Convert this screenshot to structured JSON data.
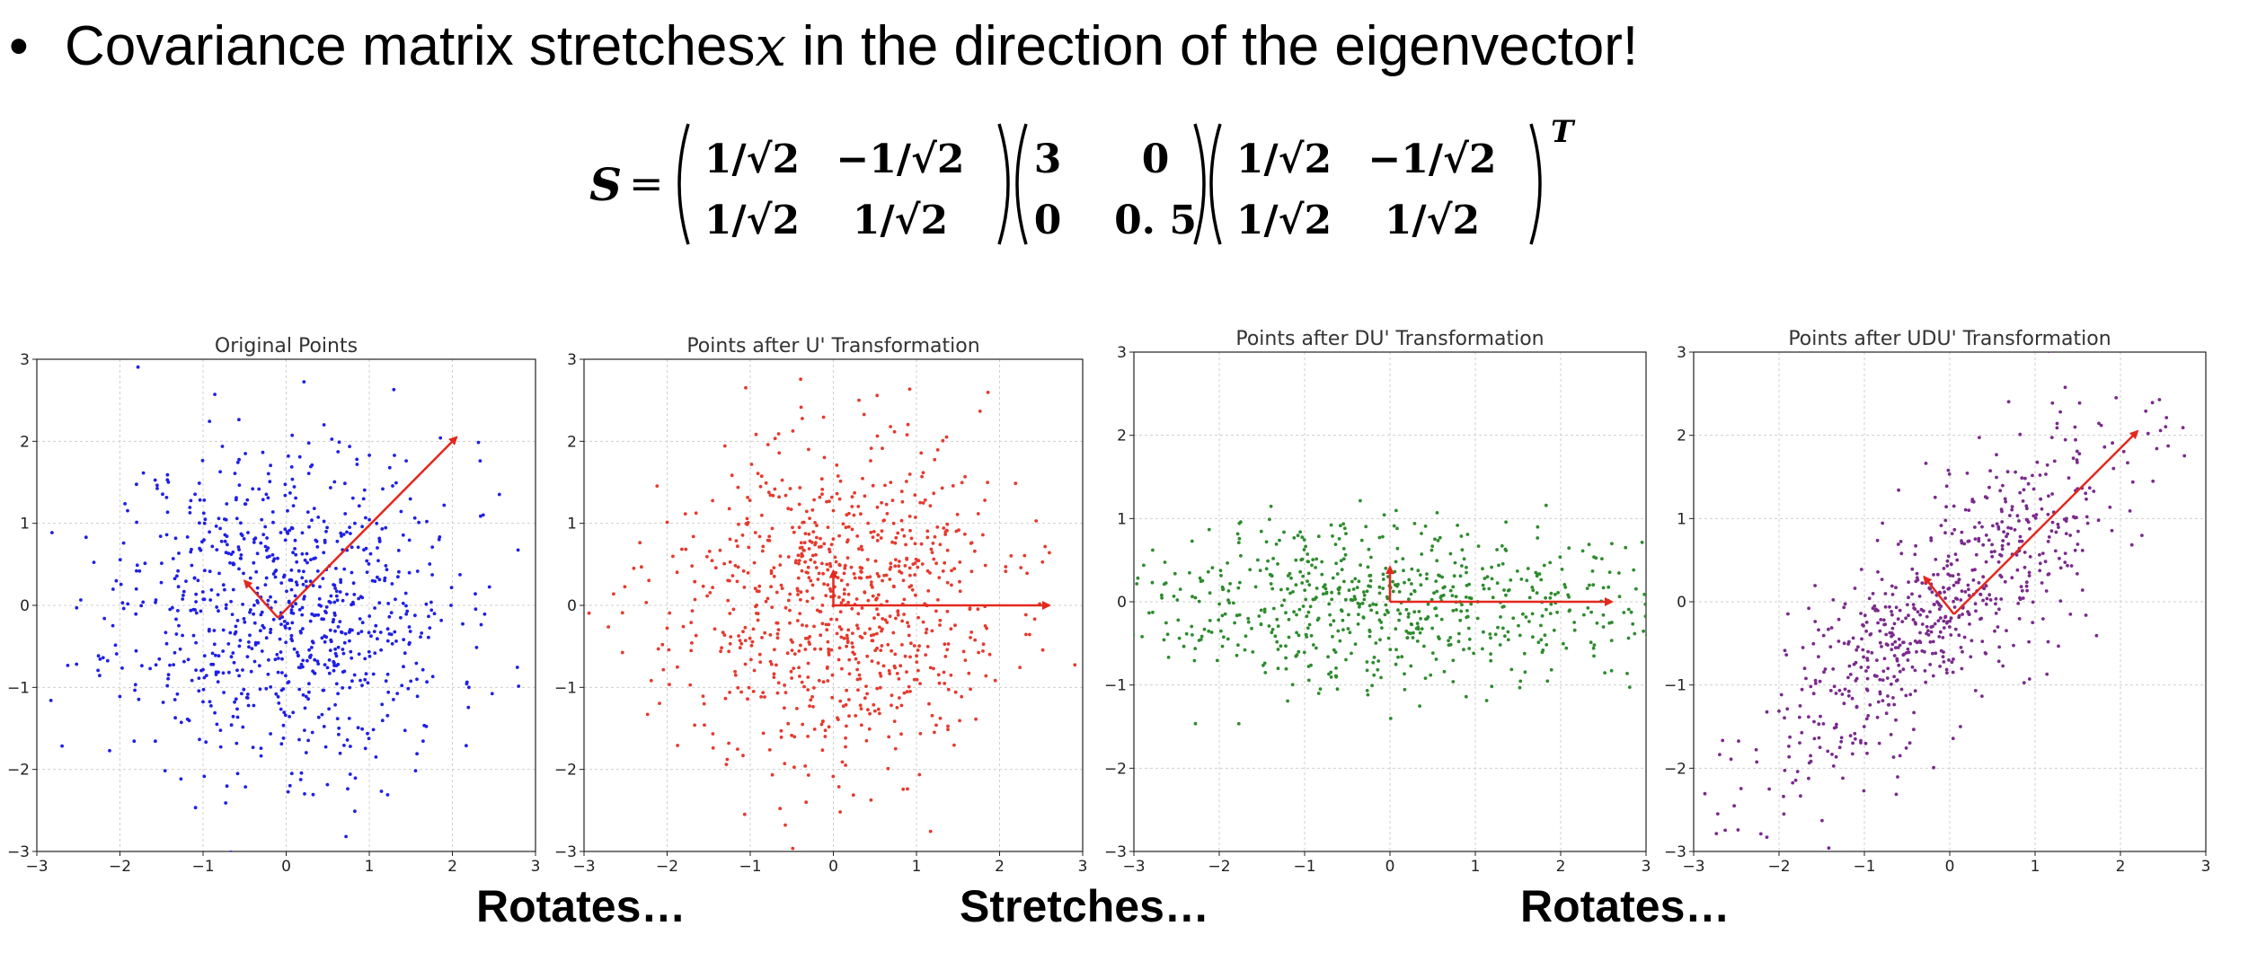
{
  "header": {
    "bullet": "•",
    "text_before": "Covariance matrix stretches ",
    "variable": "x",
    "text_after": " in the direction of the eigenvector!"
  },
  "formula": {
    "lhs": "S",
    "equals": "=",
    "U": [
      [
        "1/√2",
        "−1/√2"
      ],
      [
        "1/√2",
        "1/√2"
      ]
    ],
    "D": [
      [
        "3",
        "0"
      ],
      [
        "0",
        "0. 5"
      ]
    ],
    "U2": [
      [
        "1/√2",
        "−1/√2"
      ],
      [
        "1/√2",
        "1/√2"
      ]
    ],
    "transpose": "T"
  },
  "captions": [
    "Rotates…",
    "Stretches…",
    "Rotates…"
  ],
  "chart_data": [
    {
      "type": "scatter",
      "title": "Original Points",
      "color": "#1f1fe6",
      "xlim": [
        -3,
        3
      ],
      "ylim": [
        -3,
        3
      ],
      "xticks": [
        -3,
        -2,
        -1,
        0,
        1,
        2,
        3
      ],
      "yticks": [
        -3,
        -2,
        -1,
        0,
        1,
        2,
        3
      ],
      "grid": true,
      "distribution": {
        "sx": 1.0,
        "sy": 1.0,
        "rotation_deg": 0,
        "n": 850,
        "seed": 11
      },
      "arrows": [
        {
          "from": [
            -0.1,
            -0.15
          ],
          "to": [
            2.05,
            2.05
          ]
        },
        {
          "from": [
            -0.1,
            -0.15
          ],
          "to": [
            -0.5,
            0.3
          ]
        }
      ],
      "arrow_color": "#e3281e"
    },
    {
      "type": "scatter",
      "title": "Points after U' Transformation",
      "color": "#e53a2e",
      "xlim": [
        -3,
        3
      ],
      "ylim": [
        -3,
        3
      ],
      "xticks": [
        -3,
        -2,
        -1,
        0,
        1,
        2,
        3
      ],
      "yticks": [
        -3,
        -2,
        -1,
        0,
        1,
        2,
        3
      ],
      "grid": true,
      "distribution": {
        "sx": 1.0,
        "sy": 1.0,
        "rotation_deg": 0,
        "n": 850,
        "seed": 23
      },
      "arrows": [
        {
          "from": [
            0,
            0
          ],
          "to": [
            2.6,
            0
          ]
        },
        {
          "from": [
            0,
            0
          ],
          "to": [
            0,
            0.42
          ]
        }
      ],
      "arrow_color": "#e3281e"
    },
    {
      "type": "scatter",
      "title": "Points after DU' Transformation",
      "color": "#2e8b2e",
      "xlim": [
        -3,
        3
      ],
      "ylim": [
        -3,
        3
      ],
      "xticks": [
        -3,
        -2,
        -1,
        0,
        1,
        2,
        3
      ],
      "yticks": [
        -3,
        -2,
        -1,
        0,
        1,
        2,
        3
      ],
      "grid": true,
      "distribution": {
        "sx": 1.6,
        "sy": 0.5,
        "rotation_deg": 0,
        "n": 700,
        "seed": 37
      },
      "arrows": [
        {
          "from": [
            0,
            0
          ],
          "to": [
            2.6,
            0
          ]
        },
        {
          "from": [
            0,
            0
          ],
          "to": [
            0,
            0.42
          ]
        }
      ],
      "arrow_color": "#e3281e"
    },
    {
      "type": "scatter",
      "title": "Points after UDU' Transformation",
      "color": "#7a2a8c",
      "xlim": [
        -3,
        3
      ],
      "ylim": [
        -3,
        3
      ],
      "xticks": [
        -3,
        -2,
        -1,
        0,
        1,
        2,
        3
      ],
      "yticks": [
        -3,
        -2,
        -1,
        0,
        1,
        2,
        3
      ],
      "grid": true,
      "distribution": {
        "sx": 1.6,
        "sy": 0.5,
        "rotation_deg": 45,
        "n": 700,
        "seed": 53
      },
      "arrows": [
        {
          "from": [
            0.05,
            -0.15
          ],
          "to": [
            2.2,
            2.05
          ]
        },
        {
          "from": [
            0.05,
            -0.15
          ],
          "to": [
            -0.3,
            0.3
          ]
        }
      ],
      "arrow_color": "#e3281e"
    }
  ]
}
